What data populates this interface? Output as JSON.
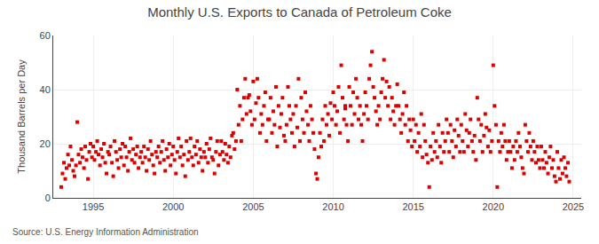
{
  "chart_data": {
    "type": "scatter",
    "title": "Monthly U.S. Exports to Canada of Petroleum Coke",
    "y_label": "Thousand Barrels per Day",
    "annotations": [
      "Source: U.S. Energy Information Administration"
    ],
    "color": "#dd0000",
    "marker": "square",
    "grid": true,
    "xlim": [
      1992.5,
      2025.5
    ],
    "xticks": [
      1995,
      2000,
      2005,
      2010,
      2015,
      2020,
      2025
    ],
    "ylim": [
      0,
      60
    ],
    "yticks": [
      0,
      20,
      40,
      60
    ],
    "x": [
      1993.0,
      1993.08,
      1993.17,
      1993.25,
      1993.33,
      1993.42,
      1993.5,
      1993.58,
      1993.67,
      1993.75,
      1993.83,
      1993.92,
      1994.0,
      1994.08,
      1994.17,
      1994.25,
      1994.33,
      1994.42,
      1994.5,
      1994.58,
      1994.67,
      1994.75,
      1994.83,
      1994.92,
      1995.0,
      1995.08,
      1995.17,
      1995.25,
      1995.33,
      1995.42,
      1995.5,
      1995.58,
      1995.67,
      1995.75,
      1995.83,
      1995.92,
      1996.0,
      1996.08,
      1996.17,
      1996.25,
      1996.33,
      1996.42,
      1996.5,
      1996.58,
      1996.67,
      1996.75,
      1996.83,
      1996.92,
      1997.0,
      1997.08,
      1997.17,
      1997.25,
      1997.33,
      1997.42,
      1997.5,
      1997.58,
      1997.67,
      1997.75,
      1997.83,
      1997.92,
      1998.0,
      1998.08,
      1998.17,
      1998.25,
      1998.33,
      1998.42,
      1998.5,
      1998.58,
      1998.67,
      1998.75,
      1998.83,
      1998.92,
      1999.0,
      1999.08,
      1999.17,
      1999.25,
      1999.33,
      1999.42,
      1999.5,
      1999.58,
      1999.67,
      1999.75,
      1999.83,
      1999.92,
      2000.0,
      2000.08,
      2000.17,
      2000.25,
      2000.33,
      2000.42,
      2000.5,
      2000.58,
      2000.67,
      2000.75,
      2000.83,
      2000.92,
      2001.0,
      2001.08,
      2001.17,
      2001.25,
      2001.33,
      2001.42,
      2001.5,
      2001.58,
      2001.67,
      2001.75,
      2001.83,
      2001.92,
      2002.0,
      2002.08,
      2002.17,
      2002.25,
      2002.33,
      2002.42,
      2002.5,
      2002.58,
      2002.67,
      2002.75,
      2002.83,
      2002.92,
      2003.0,
      2003.08,
      2003.17,
      2003.25,
      2003.33,
      2003.42,
      2003.5,
      2003.58,
      2003.67,
      2003.75,
      2003.83,
      2003.92,
      2004.0,
      2004.08,
      2004.17,
      2004.25,
      2004.33,
      2004.42,
      2004.5,
      2004.58,
      2004.67,
      2004.75,
      2004.83,
      2004.92,
      2005.0,
      2005.08,
      2005.17,
      2005.25,
      2005.33,
      2005.42,
      2005.5,
      2005.58,
      2005.67,
      2005.75,
      2005.83,
      2005.92,
      2006.0,
      2006.08,
      2006.17,
      2006.25,
      2006.33,
      2006.42,
      2006.5,
      2006.58,
      2006.67,
      2006.75,
      2006.83,
      2006.92,
      2007.0,
      2007.08,
      2007.17,
      2007.25,
      2007.33,
      2007.42,
      2007.5,
      2007.58,
      2007.67,
      2007.75,
      2007.83,
      2007.92,
      2008.0,
      2008.08,
      2008.17,
      2008.25,
      2008.33,
      2008.42,
      2008.5,
      2008.58,
      2008.67,
      2008.75,
      2008.83,
      2008.92,
      2009.0,
      2009.08,
      2009.17,
      2009.25,
      2009.33,
      2009.42,
      2009.5,
      2009.58,
      2009.67,
      2009.75,
      2009.83,
      2009.92,
      2010.0,
      2010.08,
      2010.17,
      2010.25,
      2010.33,
      2010.42,
      2010.5,
      2010.58,
      2010.67,
      2010.75,
      2010.75,
      2010.83,
      2010.92,
      2011.0,
      2011.08,
      2011.17,
      2011.25,
      2011.33,
      2011.42,
      2011.5,
      2011.58,
      2011.67,
      2011.75,
      2011.83,
      2011.92,
      2012.0,
      2012.08,
      2012.17,
      2012.25,
      2012.33,
      2012.42,
      2012.5,
      2012.58,
      2012.67,
      2012.75,
      2012.83,
      2012.92,
      2013.0,
      2013.08,
      2013.17,
      2013.25,
      2013.33,
      2013.42,
      2013.5,
      2013.58,
      2013.67,
      2013.75,
      2013.83,
      2013.92,
      2014.0,
      2014.08,
      2014.17,
      2014.25,
      2014.33,
      2014.42,
      2014.5,
      2014.58,
      2014.67,
      2014.75,
      2014.83,
      2014.92,
      2015.0,
      2015.08,
      2015.17,
      2015.25,
      2015.33,
      2015.42,
      2015.5,
      2015.58,
      2015.67,
      2015.75,
      2015.83,
      2015.92,
      2016.0,
      2016.08,
      2016.17,
      2016.25,
      2016.33,
      2016.42,
      2016.5,
      2016.58,
      2016.67,
      2016.75,
      2016.83,
      2016.92,
      2017.0,
      2017.08,
      2017.17,
      2017.25,
      2017.33,
      2017.42,
      2017.5,
      2017.58,
      2017.67,
      2017.75,
      2017.83,
      2017.92,
      2018.0,
      2018.08,
      2018.17,
      2018.25,
      2018.33,
      2018.42,
      2018.5,
      2018.58,
      2018.67,
      2018.75,
      2018.83,
      2018.92,
      2019.0,
      2019.08,
      2019.17,
      2019.25,
      2019.33,
      2019.42,
      2019.5,
      2019.58,
      2019.67,
      2019.75,
      2019.83,
      2019.92,
      2020.0,
      2020.08,
      2020.17,
      2020.25,
      2020.33,
      2020.42,
      2020.5,
      2020.58,
      2020.67,
      2020.75,
      2020.83,
      2020.92,
      2021.0,
      2021.08,
      2021.17,
      2021.25,
      2021.33,
      2021.42,
      2021.5,
      2021.58,
      2021.67,
      2021.75,
      2021.83,
      2021.92,
      2022.0,
      2022.08,
      2022.17,
      2022.25,
      2022.33,
      2022.42,
      2022.5,
      2022.58,
      2022.67,
      2022.75,
      2022.83,
      2022.92,
      2023.0,
      2023.08,
      2023.17,
      2023.25,
      2023.33,
      2023.42,
      2023.5,
      2023.58,
      2023.67,
      2023.75,
      2023.83,
      2023.92,
      2024.0,
      2024.08,
      2024.17,
      2024.25,
      2024.33,
      2024.42,
      2024.5,
      2024.58,
      2024.67,
      2024.75
    ],
    "values": [
      4,
      9,
      13,
      7,
      11,
      16,
      12,
      19,
      14,
      10,
      8,
      12,
      28,
      16,
      13,
      18,
      15,
      11,
      19,
      14,
      7,
      17,
      20,
      15,
      19,
      14,
      17,
      21,
      16,
      12,
      18,
      15,
      20,
      13,
      9,
      17,
      16,
      19,
      13,
      8,
      21,
      17,
      14,
      11,
      18,
      15,
      20,
      12,
      19,
      15,
      10,
      17,
      22,
      14,
      18,
      13,
      16,
      19,
      11,
      15,
      17,
      13,
      19,
      15,
      10,
      18,
      14,
      21,
      16,
      12,
      9,
      17,
      15,
      19,
      13,
      17,
      21,
      14,
      10,
      18,
      15,
      20,
      12,
      16,
      19,
      14,
      9,
      17,
      22,
      15,
      19,
      12,
      16,
      8,
      21,
      14,
      17,
      22,
      15,
      12,
      19,
      16,
      21,
      13,
      18,
      15,
      10,
      17,
      15,
      20,
      13,
      18,
      22,
      15,
      14,
      9,
      17,
      21,
      12,
      16,
      21,
      17,
      14,
      20,
      16,
      13,
      19,
      15,
      23,
      24,
      18,
      21,
      40,
      27,
      34,
      21,
      29,
      37,
      44,
      31,
      37,
      38,
      32,
      27,
      43,
      29,
      35,
      44,
      37,
      24,
      31,
      27,
      34,
      39,
      21,
      29,
      29,
      37,
      24,
      32,
      27,
      41,
      19,
      34,
      26,
      31,
      37,
      23,
      21,
      27,
      41,
      34,
      29,
      24,
      31,
      19,
      34,
      26,
      44,
      21,
      37,
      29,
      24,
      39,
      32,
      27,
      21,
      34,
      29,
      24,
      18,
      9,
      7,
      15,
      24,
      19,
      29,
      21,
      34,
      27,
      31,
      23,
      35,
      29,
      39,
      34,
      27,
      32,
      41,
      24,
      49,
      37,
      29,
      34,
      33,
      27,
      21,
      41,
      34,
      27,
      39,
      31,
      44,
      37,
      29,
      34,
      27,
      21,
      31,
      39,
      34,
      29,
      44,
      49,
      54,
      41,
      37,
      32,
      27,
      34,
      29,
      39,
      44,
      51,
      37,
      43,
      34,
      41,
      29,
      37,
      32,
      27,
      34,
      42,
      34,
      29,
      24,
      31,
      39,
      27,
      34,
      21,
      29,
      25,
      19,
      29,
      21,
      27,
      17,
      24,
      19,
      31,
      15,
      27,
      21,
      16,
      13,
      4,
      19,
      14,
      24,
      17,
      21,
      15,
      27,
      19,
      13,
      24,
      17,
      21,
      29,
      24,
      17,
      27,
      21,
      15,
      25,
      19,
      29,
      23,
      17,
      27,
      21,
      17,
      31,
      25,
      19,
      24,
      29,
      21,
      17,
      23,
      14,
      37,
      29,
      21,
      27,
      17,
      23,
      31,
      26,
      19,
      25,
      17,
      21,
      49,
      34,
      27,
      4,
      21,
      17,
      24,
      19,
      27,
      21,
      14,
      17,
      21,
      17,
      11,
      19,
      14,
      21,
      17,
      24,
      19,
      15,
      11,
      9,
      27,
      21,
      17,
      24,
      19,
      14,
      21,
      17,
      13,
      19,
      14,
      11,
      19,
      14,
      11,
      17,
      13,
      9,
      15,
      19,
      11,
      14,
      8,
      6,
      17,
      11,
      7,
      14,
      9,
      15,
      11,
      8,
      13,
      6
    ]
  }
}
